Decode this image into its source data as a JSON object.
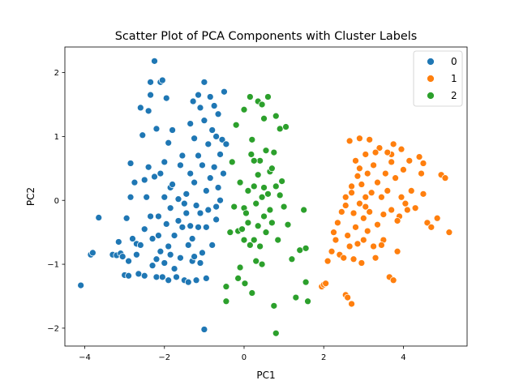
{
  "chart_data": {
    "type": "scatter",
    "title": "Scatter Plot of PCA Components with Cluster Labels",
    "xlabel": "PC1",
    "ylabel": "PC2",
    "xlim": [
      -4.5,
      5.6
    ],
    "ylim": [
      -2.28,
      2.4
    ],
    "xticks": [
      -4,
      -2,
      0,
      2,
      4
    ],
    "xtick_labels": [
      "−4",
      "−2",
      "0",
      "2",
      "4"
    ],
    "yticks": [
      -2,
      -1,
      0,
      1,
      2
    ],
    "ytick_labels": [
      "−2",
      "−1",
      "0",
      "1",
      "2"
    ],
    "grid": false,
    "legend_position": "top-right",
    "series": [
      {
        "name": "0",
        "color": "#1f77b4",
        "points": [
          [
            -4.1,
            -1.33
          ],
          [
            -3.85,
            -0.85
          ],
          [
            -3.8,
            -0.82
          ],
          [
            -3.65,
            -0.27
          ],
          [
            -3.3,
            -0.85
          ],
          [
            -3.2,
            -0.86
          ],
          [
            -3.15,
            -0.65
          ],
          [
            -3.1,
            -0.83
          ],
          [
            -3.05,
            -0.88
          ],
          [
            -3.0,
            -1.17
          ],
          [
            -2.95,
            -0.28
          ],
          [
            -2.9,
            -0.95
          ],
          [
            -2.9,
            -1.18
          ],
          [
            -2.85,
            0.58
          ],
          [
            -2.85,
            0.05
          ],
          [
            -2.75,
            0.28
          ],
          [
            -2.7,
            -0.68
          ],
          [
            -2.7,
            -0.85
          ],
          [
            -2.65,
            -1.15
          ],
          [
            -2.6,
            -0.7
          ],
          [
            -2.55,
            1.02
          ],
          [
            -2.5,
            0.32
          ],
          [
            -2.5,
            -0.45
          ],
          [
            -2.5,
            -1.18
          ],
          [
            -2.45,
            0.05
          ],
          [
            -2.4,
            1.4
          ],
          [
            -2.4,
            0.52
          ],
          [
            -2.35,
            1.65
          ],
          [
            -2.35,
            -0.25
          ],
          [
            -2.3,
            -0.6
          ],
          [
            -2.3,
            -1.02
          ],
          [
            -2.25,
            0.37
          ],
          [
            -2.2,
            1.12
          ],
          [
            -2.2,
            -0.92
          ],
          [
            -2.2,
            -1.2
          ],
          [
            -2.15,
            -0.25
          ],
          [
            -2.15,
            -0.55
          ],
          [
            -2.1,
            1.85
          ],
          [
            -2.1,
            0.42
          ],
          [
            -2.1,
            -0.8
          ],
          [
            -2.05,
            -1.2
          ],
          [
            -2.0,
            0.6
          ],
          [
            -2.0,
            0.05
          ],
          [
            -2.0,
            -0.98
          ],
          [
            -1.95,
            1.6
          ],
          [
            -1.95,
            -0.37
          ],
          [
            -1.9,
            0.9
          ],
          [
            -1.9,
            -0.72
          ],
          [
            -1.9,
            -1.25
          ],
          [
            -1.85,
            0.2
          ],
          [
            -1.85,
            -0.12
          ],
          [
            -1.85,
            -0.85
          ],
          [
            -1.8,
            1.1
          ],
          [
            -1.8,
            0.25
          ],
          [
            -1.75,
            -0.55
          ],
          [
            -1.75,
            -1.07
          ],
          [
            -1.7,
            -1.2
          ],
          [
            -1.65,
            0.02
          ],
          [
            -1.65,
            -0.32
          ],
          [
            -1.6,
            0.55
          ],
          [
            -1.6,
            -0.9
          ],
          [
            -1.55,
            0.7
          ],
          [
            -1.55,
            -0.42
          ],
          [
            -1.5,
            -1.25
          ],
          [
            -1.45,
            0.1
          ],
          [
            -1.45,
            -0.2
          ],
          [
            -1.4,
            -0.7
          ],
          [
            -1.4,
            -1.28
          ],
          [
            -1.35,
            1.2
          ],
          [
            -1.35,
            0.42
          ],
          [
            -1.3,
            -0.6
          ],
          [
            -1.3,
            -0.95
          ],
          [
            -1.28,
            1.55
          ],
          [
            -1.25,
            0.97
          ],
          [
            -1.25,
            0.28
          ],
          [
            -1.2,
            -0.08
          ],
          [
            -1.2,
            -1.25
          ],
          [
            -1.15,
            1.65
          ],
          [
            -1.15,
            0.7
          ],
          [
            -1.1,
            1.45
          ],
          [
            -1.1,
            -0.2
          ],
          [
            -1.1,
            -0.98
          ],
          [
            -1.05,
            0.55
          ],
          [
            -1.05,
            -0.82
          ],
          [
            -1.0,
            1.85
          ],
          [
            -1.0,
            1.25
          ],
          [
            -1.0,
            -2.02
          ],
          [
            -0.95,
            0.15
          ],
          [
            -0.95,
            -0.42
          ],
          [
            -0.9,
            0.88
          ],
          [
            -0.9,
            -0.15
          ],
          [
            -0.85,
            1.62
          ],
          [
            -0.85,
            0.35
          ],
          [
            -0.8,
            1.1
          ],
          [
            -0.8,
            -0.7
          ],
          [
            -0.75,
            1.48
          ],
          [
            -0.75,
            0.52
          ],
          [
            -0.7,
            1.0
          ],
          [
            -0.7,
            -0.1
          ],
          [
            -0.65,
            1.35
          ],
          [
            -0.65,
            0.2
          ],
          [
            -0.6,
            0.72
          ],
          [
            -0.55,
            0.95
          ],
          [
            -0.52,
            0.42
          ],
          [
            -0.5,
            1.7
          ],
          [
            -0.45,
            0.88
          ],
          [
            -2.25,
            2.18
          ],
          [
            -2.05,
            1.88
          ],
          [
            -2.35,
            1.85
          ],
          [
            -1.15,
            -0.42
          ],
          [
            -1.25,
            -0.88
          ],
          [
            -0.95,
            -1.22
          ],
          [
            -2.6,
            1.45
          ],
          [
            -2.8,
            -0.6
          ],
          [
            -1.5,
            -0.05
          ],
          [
            -1.35,
            -0.4
          ],
          [
            -0.6,
            0.0
          ],
          [
            -0.7,
            -0.3
          ]
        ]
      },
      {
        "name": "1",
        "color": "#ff7f0e",
        "points": [
          [
            1.95,
            -1.35
          ],
          [
            2.0,
            -1.32
          ],
          [
            2.05,
            -1.3
          ],
          [
            2.1,
            -0.95
          ],
          [
            2.2,
            -0.8
          ],
          [
            2.25,
            -0.5
          ],
          [
            2.3,
            -0.62
          ],
          [
            2.35,
            -0.35
          ],
          [
            2.4,
            -0.85
          ],
          [
            2.45,
            -0.18
          ],
          [
            2.5,
            -0.9
          ],
          [
            2.55,
            -0.08
          ],
          [
            2.55,
            -1.48
          ],
          [
            2.6,
            -0.55
          ],
          [
            2.6,
            -1.52
          ],
          [
            2.65,
            0.93
          ],
          [
            2.65,
            -0.72
          ],
          [
            2.7,
            -1.62
          ],
          [
            2.7,
            0.22
          ],
          [
            2.75,
            -0.2
          ],
          [
            2.75,
            -0.92
          ],
          [
            2.8,
            0.62
          ],
          [
            2.8,
            -0.42
          ],
          [
            2.85,
            0.38
          ],
          [
            2.85,
            -0.68
          ],
          [
            2.9,
            0.97
          ],
          [
            2.9,
            -0.05
          ],
          [
            2.95,
            -0.98
          ],
          [
            2.95,
            0.25
          ],
          [
            3.0,
            -0.28
          ],
          [
            3.0,
            -0.62
          ],
          [
            3.05,
            0.72
          ],
          [
            3.05,
            0.05
          ],
          [
            3.1,
            0.42
          ],
          [
            3.1,
            -0.48
          ],
          [
            3.15,
            0.95
          ],
          [
            3.15,
            -0.18
          ],
          [
            3.2,
            0.12
          ],
          [
            3.25,
            0.55
          ],
          [
            3.25,
            -0.72
          ],
          [
            3.3,
            -0.9
          ],
          [
            3.35,
            0.28
          ],
          [
            3.35,
            -0.38
          ],
          [
            3.4,
            0.82
          ],
          [
            3.45,
            0.05
          ],
          [
            3.5,
            -0.22
          ],
          [
            3.5,
            -0.62
          ],
          [
            3.55,
            0.42
          ],
          [
            3.6,
            0.15
          ],
          [
            3.65,
            -1.2
          ],
          [
            3.7,
            0.72
          ],
          [
            3.7,
            -0.15
          ],
          [
            3.75,
            0.88
          ],
          [
            3.75,
            -1.25
          ],
          [
            3.8,
            0.35
          ],
          [
            3.85,
            -0.8
          ],
          [
            3.9,
            -0.25
          ],
          [
            3.95,
            0.05
          ],
          [
            4.0,
            0.48
          ],
          [
            4.05,
            -0.05
          ],
          [
            4.15,
            0.62
          ],
          [
            4.2,
            0.15
          ],
          [
            4.3,
            -0.12
          ],
          [
            4.4,
            0.68
          ],
          [
            4.45,
            0.42
          ],
          [
            4.5,
            0.1
          ],
          [
            4.6,
            -0.35
          ],
          [
            4.7,
            -0.42
          ],
          [
            4.85,
            -0.28
          ],
          [
            4.95,
            0.4
          ],
          [
            5.05,
            0.35
          ],
          [
            5.15,
            -0.5
          ],
          [
            3.3,
            0.75
          ],
          [
            3.7,
            0.6
          ],
          [
            4.1,
            -0.15
          ],
          [
            2.9,
            0.5
          ],
          [
            3.45,
            -0.7
          ],
          [
            3.95,
            0.8
          ],
          [
            4.5,
            0.58
          ],
          [
            3.85,
            -0.32
          ],
          [
            3.6,
            0.75
          ],
          [
            2.55,
            0.05
          ],
          [
            3.05,
            -0.1
          ],
          [
            2.7,
            0.12
          ]
        ]
      },
      {
        "name": "2",
        "color": "#2ca02c",
        "points": [
          [
            -0.45,
            -1.35
          ],
          [
            -0.45,
            -1.58
          ],
          [
            -0.35,
            -0.5
          ],
          [
            -0.3,
            0.6
          ],
          [
            -0.25,
            -0.1
          ],
          [
            -0.2,
            1.18
          ],
          [
            -0.15,
            -0.48
          ],
          [
            -0.15,
            -1.22
          ],
          [
            -0.1,
            0.28
          ],
          [
            -0.1,
            -1.05
          ],
          [
            -0.05,
            -0.45
          ],
          [
            0.0,
            1.42
          ],
          [
            0.0,
            -0.12
          ],
          [
            0.02,
            -1.3
          ],
          [
            0.05,
            -0.2
          ],
          [
            0.1,
            0.15
          ],
          [
            0.1,
            -0.35
          ],
          [
            0.15,
            1.62
          ],
          [
            0.15,
            -0.7
          ],
          [
            0.18,
            0.72
          ],
          [
            0.2,
            0.95
          ],
          [
            0.2,
            -1.45
          ],
          [
            0.25,
            0.22
          ],
          [
            0.25,
            -0.62
          ],
          [
            0.3,
            -0.05
          ],
          [
            0.3,
            -0.95
          ],
          [
            0.35,
            1.55
          ],
          [
            0.35,
            0.4
          ],
          [
            0.35,
            -0.4
          ],
          [
            0.4,
            0.62
          ],
          [
            0.4,
            -0.72
          ],
          [
            0.45,
            0.05
          ],
          [
            0.45,
            -1.0
          ],
          [
            0.5,
            1.28
          ],
          [
            0.5,
            0.2
          ],
          [
            0.5,
            -0.25
          ],
          [
            0.55,
            0.78
          ],
          [
            0.55,
            -0.5
          ],
          [
            0.6,
            1.62
          ],
          [
            0.6,
            0.1
          ],
          [
            0.65,
            -0.15
          ],
          [
            0.65,
            0.45
          ],
          [
            0.7,
            -0.35
          ],
          [
            0.75,
            0.75
          ],
          [
            0.75,
            -1.65
          ],
          [
            0.8,
            1.32
          ],
          [
            0.8,
            0.22
          ],
          [
            0.8,
            -2.08
          ],
          [
            0.85,
            -0.62
          ],
          [
            0.9,
            1.12
          ],
          [
            0.9,
            0.08
          ],
          [
            0.95,
            0.3
          ],
          [
            1.0,
            -0.1
          ],
          [
            1.05,
            1.15
          ],
          [
            1.1,
            -0.38
          ],
          [
            1.2,
            -0.92
          ],
          [
            1.3,
            -1.52
          ],
          [
            1.4,
            -0.78
          ],
          [
            1.5,
            -0.15
          ],
          [
            1.55,
            -0.75
          ],
          [
            1.55,
            -1.28
          ],
          [
            1.6,
            -1.58
          ],
          [
            0.7,
            0.5
          ],
          [
            0.25,
            0.62
          ],
          [
            0.45,
            1.5
          ],
          [
            0.0,
            -0.62
          ]
        ]
      }
    ]
  }
}
